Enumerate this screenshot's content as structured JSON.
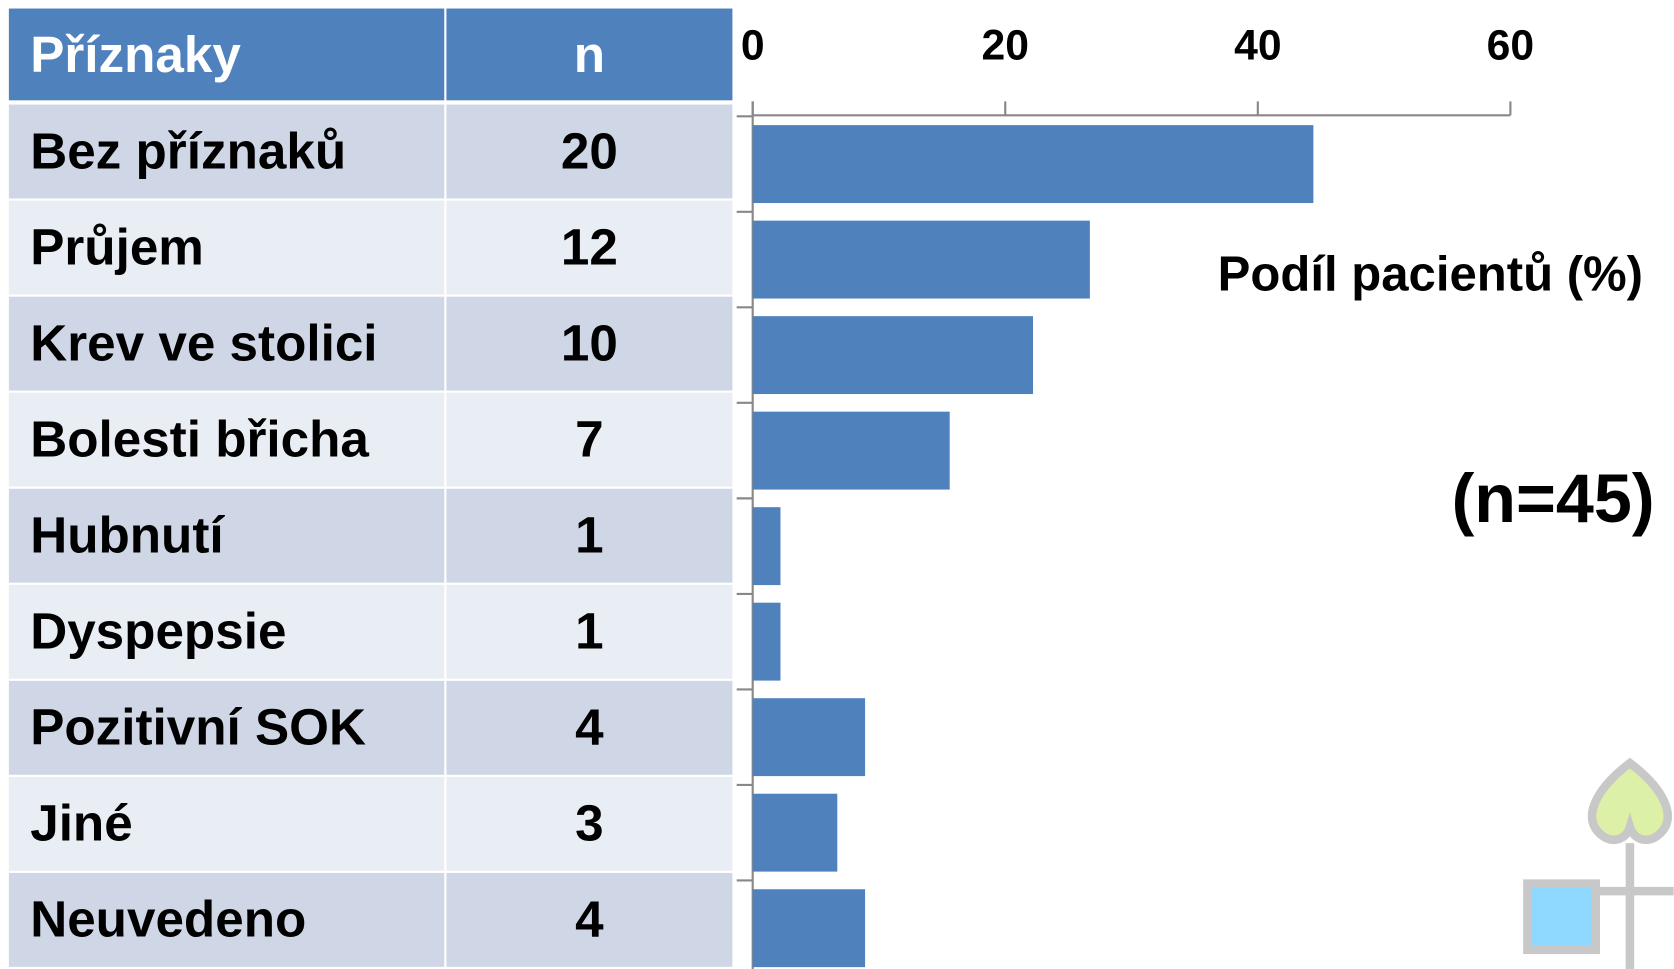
{
  "table": {
    "header": [
      "Příznaky",
      "n"
    ],
    "n": [
      20,
      12,
      10,
      7,
      1,
      1,
      4,
      3,
      4
    ]
  },
  "chart_data": {
    "type": "bar",
    "orientation": "horizontal",
    "categories": [
      "Bez příznaků",
      "Průjem",
      "Krev ve stolici",
      "Bolesti břicha",
      "Hubnutí",
      "Dyspepsie",
      "Pozitivní SOK",
      "Jiné",
      "Neuvedeno"
    ],
    "values": [
      44.4,
      26.7,
      22.2,
      15.6,
      2.2,
      2.2,
      8.9,
      6.7,
      8.9
    ],
    "color": "#4f81bd",
    "xlim": [
      0,
      60
    ],
    "xticks": [
      0,
      20,
      40,
      60
    ],
    "xlabel": "Podíl pacientů (%)",
    "annotation": "(n=45)"
  }
}
